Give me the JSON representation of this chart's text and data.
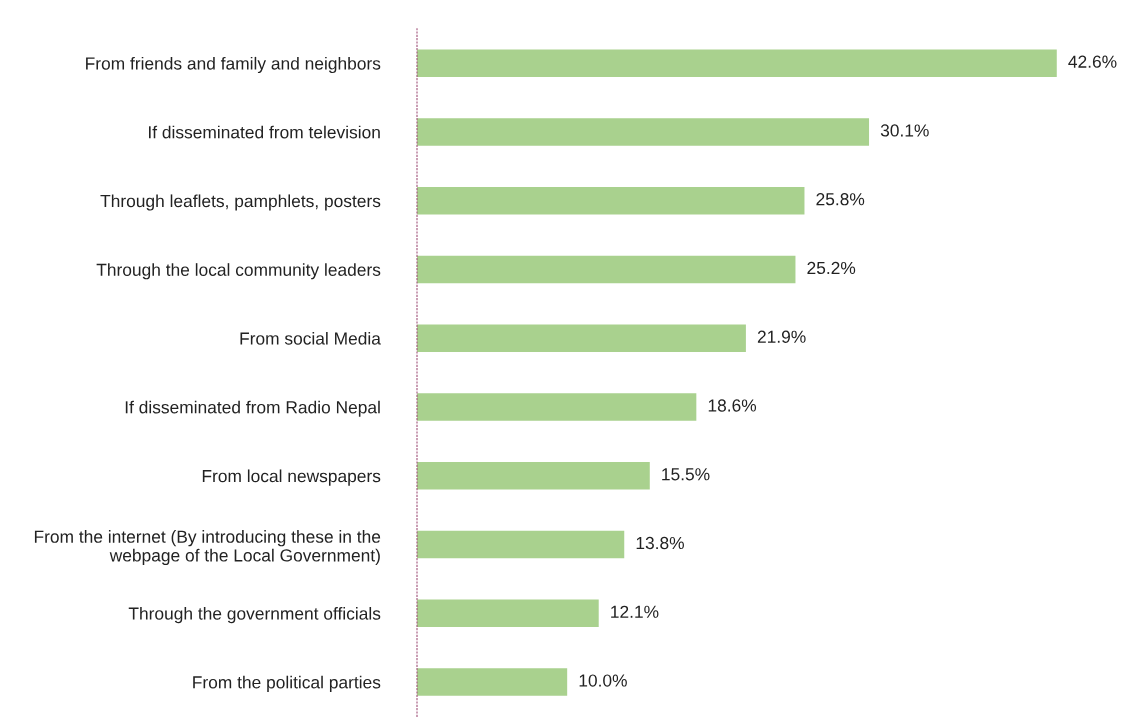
{
  "chart_data": {
    "type": "bar",
    "orientation": "horizontal",
    "categories": [
      "From friends and family and neighbors",
      "If disseminated from television",
      "Through leaflets, pamphlets, posters",
      "Through the local community leaders",
      "From social Media",
      "If disseminated from Radio Nepal",
      "From local newspapers",
      "From the internet (By introducing these in the\nwebpage of the Local Government)",
      "Through the government officials",
      "From the political parties"
    ],
    "values": [
      42.6,
      30.1,
      25.8,
      25.2,
      21.9,
      18.6,
      15.5,
      13.8,
      12.1,
      10.0
    ],
    "value_labels": [
      "42.6%",
      "30.1%",
      "25.8%",
      "25.2%",
      "21.9%",
      "18.6%",
      "15.5%",
      "13.8%",
      "12.1%",
      "10.0%"
    ],
    "color": "#a9d18e",
    "grid": false,
    "legend": false
  }
}
